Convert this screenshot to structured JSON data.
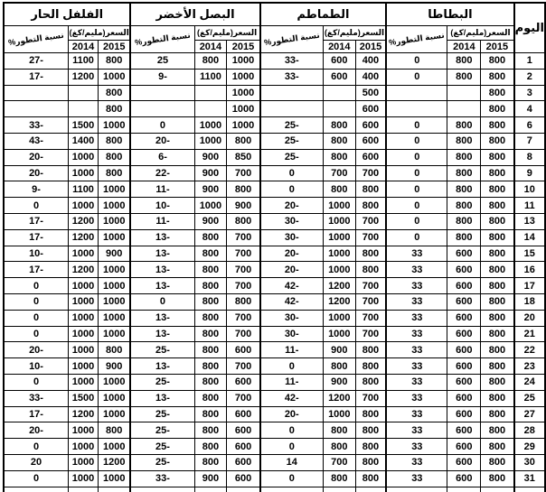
{
  "table": {
    "header": {
      "day_label": "اليوم",
      "percent_label": "نسبة التطور%",
      "price_label": "السعر(مليم/كغ)",
      "year_2014": "2014",
      "year_2015": "2015",
      "groups": [
        {
          "name": "الفلفل الحار"
        },
        {
          "name": "البصل الأخضر"
        },
        {
          "name": "الطماطم"
        },
        {
          "name": "البطاطا"
        }
      ]
    },
    "column_names": [
      "hot-pepper-change-pct",
      "hot-pepper-price-2014",
      "hot-pepper-price-2015",
      "green-onion-change-pct",
      "green-onion-price-2014",
      "green-onion-price-2015",
      "tomato-change-pct",
      "tomato-price-2014",
      "tomato-price-2015",
      "potato-change-pct",
      "potato-price-2014",
      "potato-price-2015",
      "day"
    ],
    "rows": [
      {
        "cells": [
          "27-",
          "1100",
          "800",
          "25",
          "800",
          "1000",
          "33-",
          "600",
          "400",
          "0",
          "800",
          "800",
          "1"
        ]
      },
      {
        "cells": [
          "17-",
          "1200",
          "1000",
          "9-",
          "1100",
          "1000",
          "33-",
          "600",
          "400",
          "0",
          "800",
          "800",
          "2"
        ]
      },
      {
        "cells": [
          "",
          "",
          "800",
          "",
          "",
          "1000",
          "",
          "",
          "500",
          "",
          "",
          "800",
          "3"
        ]
      },
      {
        "cells": [
          "",
          "",
          "800",
          "",
          "",
          "1000",
          "",
          "",
          "600",
          "",
          "",
          "800",
          "4"
        ]
      },
      {
        "cells": [
          "33-",
          "1500",
          "1000",
          "0",
          "1000",
          "1000",
          "25-",
          "800",
          "600",
          "0",
          "800",
          "800",
          "6"
        ]
      },
      {
        "cells": [
          "43-",
          "1400",
          "800",
          "20-",
          "1000",
          "800",
          "25-",
          "800",
          "600",
          "0",
          "800",
          "800",
          "7"
        ]
      },
      {
        "cells": [
          "20-",
          "1000",
          "800",
          "6-",
          "900",
          "850",
          "25-",
          "800",
          "600",
          "0",
          "800",
          "800",
          "8"
        ]
      },
      {
        "cells": [
          "20-",
          "1000",
          "800",
          "22-",
          "900",
          "700",
          "0",
          "700",
          "700",
          "0",
          "800",
          "800",
          "9"
        ]
      },
      {
        "cells": [
          "9-",
          "1100",
          "1000",
          "11-",
          "900",
          "800",
          "0",
          "800",
          "800",
          "0",
          "800",
          "800",
          "10"
        ]
      },
      {
        "cells": [
          "0",
          "1000",
          "1000",
          "10-",
          "1000",
          "900",
          "20-",
          "1000",
          "800",
          "0",
          "800",
          "800",
          "11"
        ]
      },
      {
        "cells": [
          "17-",
          "1200",
          "1000",
          "11-",
          "900",
          "800",
          "30-",
          "1000",
          "700",
          "0",
          "800",
          "800",
          "13"
        ]
      },
      {
        "cells": [
          "17-",
          "1200",
          "1000",
          "13-",
          "800",
          "700",
          "30-",
          "1000",
          "700",
          "0",
          "800",
          "800",
          "14"
        ]
      },
      {
        "cells": [
          "10-",
          "1000",
          "900",
          "13-",
          "800",
          "700",
          "20-",
          "1000",
          "800",
          "33",
          "600",
          "800",
          "15"
        ]
      },
      {
        "cells": [
          "17-",
          "1200",
          "1000",
          "13-",
          "800",
          "700",
          "20-",
          "1000",
          "800",
          "33",
          "600",
          "800",
          "16"
        ]
      },
      {
        "cells": [
          "0",
          "1000",
          "1000",
          "13-",
          "800",
          "700",
          "42-",
          "1200",
          "700",
          "33",
          "600",
          "800",
          "17"
        ]
      },
      {
        "cells": [
          "0",
          "1000",
          "1000",
          "0",
          "800",
          "800",
          "42-",
          "1200",
          "700",
          "33",
          "600",
          "800",
          "18"
        ]
      },
      {
        "cells": [
          "0",
          "1000",
          "1000",
          "13-",
          "800",
          "700",
          "30-",
          "1000",
          "700",
          "33",
          "600",
          "800",
          "20"
        ]
      },
      {
        "cells": [
          "0",
          "1000",
          "1000",
          "13-",
          "800",
          "700",
          "30-",
          "1000",
          "700",
          "33",
          "600",
          "800",
          "21"
        ]
      },
      {
        "cells": [
          "20-",
          "1000",
          "800",
          "25-",
          "800",
          "600",
          "11-",
          "900",
          "800",
          "33",
          "600",
          "800",
          "22"
        ]
      },
      {
        "cells": [
          "10-",
          "1000",
          "900",
          "13-",
          "800",
          "700",
          "0",
          "800",
          "800",
          "33",
          "600",
          "800",
          "23"
        ]
      },
      {
        "cells": [
          "0",
          "1000",
          "1000",
          "25-",
          "800",
          "600",
          "11-",
          "900",
          "800",
          "33",
          "600",
          "800",
          "24"
        ]
      },
      {
        "cells": [
          "33-",
          "1500",
          "1000",
          "13-",
          "800",
          "700",
          "42-",
          "1200",
          "700",
          "33",
          "600",
          "800",
          "25"
        ]
      },
      {
        "cells": [
          "17-",
          "1200",
          "1000",
          "25-",
          "800",
          "600",
          "20-",
          "1000",
          "800",
          "33",
          "600",
          "800",
          "27"
        ]
      },
      {
        "cells": [
          "20-",
          "1000",
          "800",
          "25-",
          "800",
          "600",
          "0",
          "800",
          "800",
          "33",
          "600",
          "800",
          "28"
        ]
      },
      {
        "cells": [
          "0",
          "1000",
          "1000",
          "25-",
          "800",
          "600",
          "0",
          "800",
          "800",
          "33",
          "600",
          "800",
          "29"
        ]
      },
      {
        "cells": [
          "20",
          "1000",
          "1200",
          "25-",
          "800",
          "600",
          "14",
          "700",
          "800",
          "33",
          "600",
          "800",
          "30"
        ]
      },
      {
        "cells": [
          "0",
          "1000",
          "1000",
          "33-",
          "900",
          "600",
          "0",
          "800",
          "800",
          "33",
          "600",
          "800",
          "31"
        ]
      }
    ],
    "colors": {
      "text": "#000000",
      "border": "#000000",
      "background": "#ffffff"
    }
  }
}
